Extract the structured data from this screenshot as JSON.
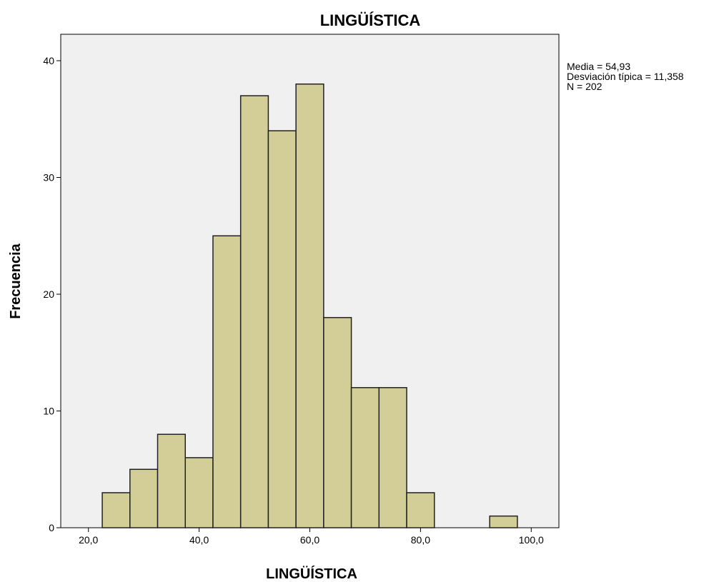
{
  "chart_data": {
    "type": "bar",
    "title": "LINGÜÍSTICA",
    "xlabel": "LINGÜÍSTICA",
    "ylabel": "Frecuencia",
    "xlim": [
      15,
      105
    ],
    "ylim": [
      0,
      40
    ],
    "bin_width": 5,
    "bins": [
      {
        "start": 22.5,
        "end": 27.5,
        "value": 3
      },
      {
        "start": 27.5,
        "end": 32.5,
        "value": 5
      },
      {
        "start": 32.5,
        "end": 37.5,
        "value": 8
      },
      {
        "start": 37.5,
        "end": 42.5,
        "value": 6
      },
      {
        "start": 42.5,
        "end": 47.5,
        "value": 25
      },
      {
        "start": 47.5,
        "end": 52.5,
        "value": 37
      },
      {
        "start": 52.5,
        "end": 57.5,
        "value": 34
      },
      {
        "start": 57.5,
        "end": 62.5,
        "value": 38
      },
      {
        "start": 62.5,
        "end": 67.5,
        "value": 18
      },
      {
        "start": 67.5,
        "end": 72.5,
        "value": 12
      },
      {
        "start": 72.5,
        "end": 77.5,
        "value": 12
      },
      {
        "start": 77.5,
        "end": 82.5,
        "value": 3
      },
      {
        "start": 92.5,
        "end": 97.5,
        "value": 1
      }
    ],
    "x_ticks": [
      {
        "value": 20,
        "label": "20,0"
      },
      {
        "value": 40,
        "label": "40,0"
      },
      {
        "value": 60,
        "label": "60,0"
      },
      {
        "value": 80,
        "label": "80,0"
      },
      {
        "value": 100,
        "label": "100,0"
      }
    ],
    "y_ticks": [
      {
        "value": 0,
        "label": "0"
      },
      {
        "value": 10,
        "label": "10"
      },
      {
        "value": 20,
        "label": "20"
      },
      {
        "value": 30,
        "label": "30"
      },
      {
        "value": 40,
        "label": "40"
      }
    ],
    "grid": false,
    "legend": "none",
    "colors": {
      "bar_fill": "#d3ce98",
      "bar_stroke": "#222222",
      "plot_background": "#f0f0f0"
    },
    "stats": {
      "media": "Media = 54,93",
      "desviacion": "Desviación típica = 11,358",
      "n": "N = 202"
    }
  }
}
